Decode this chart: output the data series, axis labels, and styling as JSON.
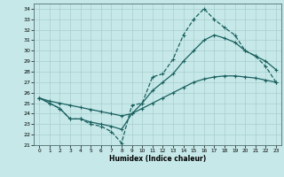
{
  "xlabel": "Humidex (Indice chaleur)",
  "xlim": [
    -0.5,
    23.5
  ],
  "ylim": [
    21,
    34.5
  ],
  "yticks": [
    21,
    22,
    23,
    24,
    25,
    26,
    27,
    28,
    29,
    30,
    31,
    32,
    33,
    34
  ],
  "xticks": [
    0,
    1,
    2,
    3,
    4,
    5,
    6,
    7,
    8,
    9,
    10,
    11,
    12,
    13,
    14,
    15,
    16,
    17,
    18,
    19,
    20,
    21,
    22,
    23
  ],
  "bg_color": "#c6e8e8",
  "grid_color": "#a8cece",
  "line_color": "#1a6060",
  "curve1_x": [
    0,
    1,
    2,
    3,
    4,
    5,
    6,
    7,
    8,
    9,
    10,
    11,
    12,
    13,
    14,
    15,
    16,
    17,
    18,
    19,
    20,
    21,
    22,
    23
  ],
  "curve1_y": [
    25.5,
    25.0,
    24.5,
    23.5,
    23.5,
    23.0,
    22.8,
    22.3,
    21.2,
    24.8,
    25.0,
    27.5,
    27.8,
    29.2,
    31.5,
    33.0,
    34.0,
    33.0,
    32.2,
    31.5,
    30.0,
    29.5,
    28.5,
    27.0
  ],
  "curve2_x": [
    0,
    1,
    2,
    3,
    4,
    5,
    6,
    7,
    8,
    9,
    10,
    11,
    12,
    13,
    14,
    15,
    16,
    17,
    18,
    19,
    20,
    21,
    22,
    23
  ],
  "curve2_y": [
    25.5,
    25.0,
    24.5,
    23.5,
    23.5,
    23.2,
    23.0,
    22.8,
    22.5,
    24.0,
    25.0,
    26.2,
    27.0,
    27.8,
    29.0,
    30.0,
    31.0,
    31.5,
    31.2,
    30.8,
    30.0,
    29.5,
    29.0,
    28.2
  ],
  "curve3_x": [
    0,
    1,
    2,
    3,
    4,
    5,
    6,
    7,
    8,
    9,
    10,
    11,
    12,
    13,
    14,
    15,
    16,
    17,
    18,
    19,
    20,
    21,
    22,
    23
  ],
  "curve3_y": [
    25.5,
    25.2,
    25.0,
    24.8,
    24.6,
    24.4,
    24.2,
    24.0,
    23.8,
    24.0,
    24.5,
    25.0,
    25.5,
    26.0,
    26.5,
    27.0,
    27.3,
    27.5,
    27.6,
    27.6,
    27.5,
    27.4,
    27.2,
    27.0
  ]
}
